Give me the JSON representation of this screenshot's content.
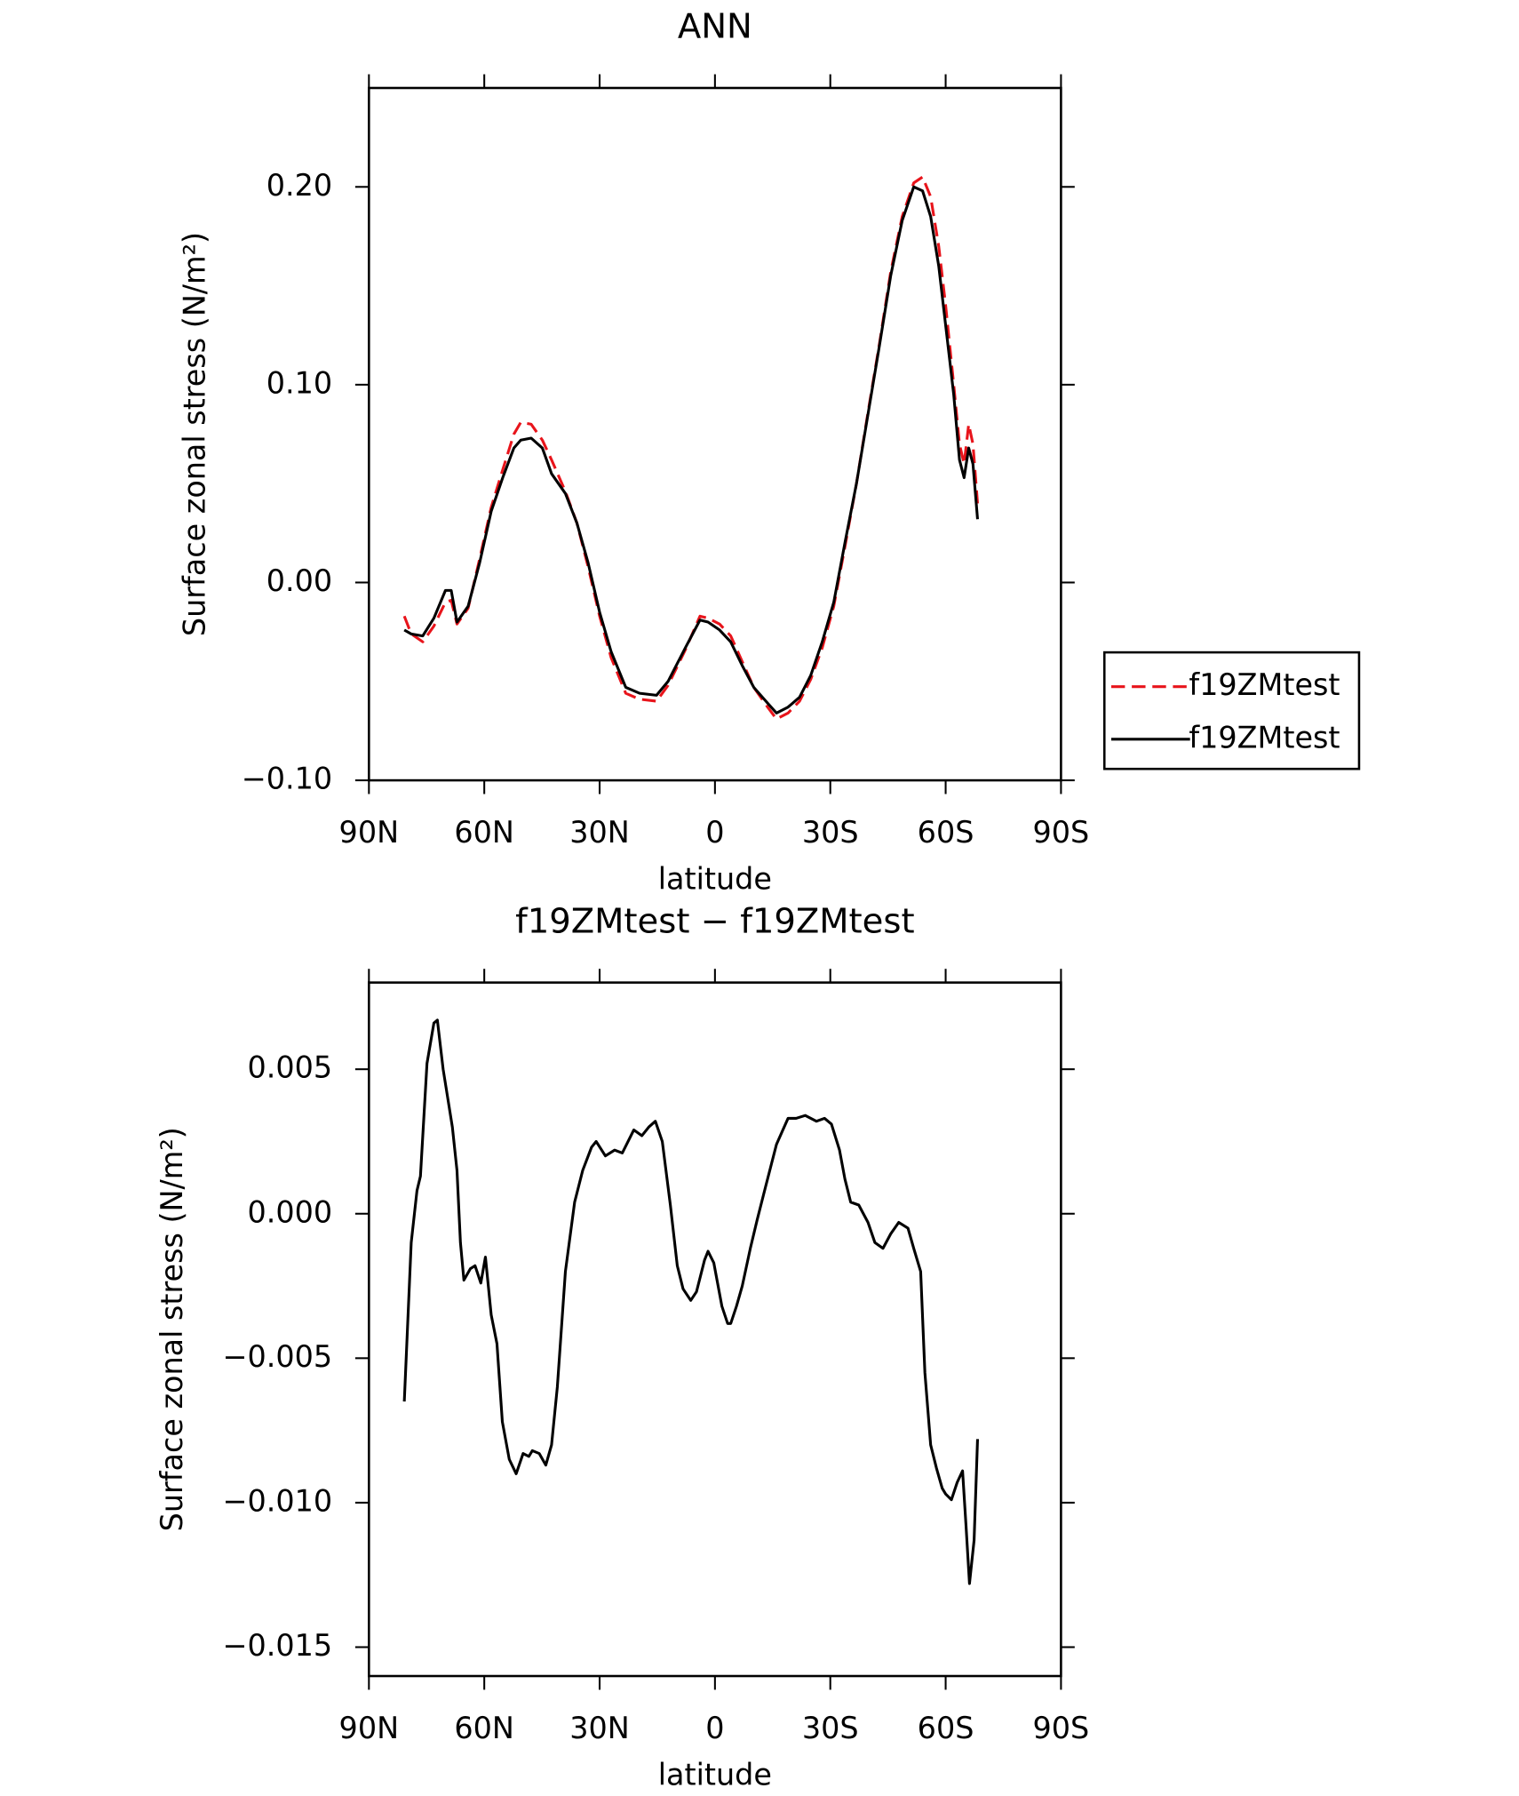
{
  "chart_data": [
    {
      "type": "line",
      "title": "ANN",
      "x_label": "latitude",
      "y_label": "Surface zonal stress (N/m²)",
      "xlim": [
        90,
        -90
      ],
      "xticks": [
        {
          "value": 90,
          "label": "90N"
        },
        {
          "value": 60,
          "label": "60N"
        },
        {
          "value": 30,
          "label": "30N"
        },
        0,
        {
          "value": -30,
          "label": "30S"
        },
        {
          "value": -60,
          "label": "60S"
        },
        {
          "value": -90,
          "label": "90S"
        }
      ],
      "ylim": [
        -0.1,
        0.25
      ],
      "yticks": [
        {
          "value": -0.1,
          "label": "−0.10"
        },
        {
          "value": 0,
          "label": "0.00"
        },
        {
          "value": 0.1,
          "label": "0.10"
        },
        {
          "value": 0.2,
          "label": "0.20"
        }
      ],
      "legend": "right",
      "x": [
        80.8,
        79.0,
        76.0,
        73.1,
        70.1,
        68.6,
        67.1,
        64.2,
        61.2,
        58.2,
        55.2,
        52.3,
        50.5,
        47.8,
        44.9,
        42.5,
        38.9,
        35.9,
        33.0,
        30.0,
        27.0,
        23.2,
        19.6,
        15.2,
        12.2,
        7.7,
        3.9,
        1.8,
        -1.2,
        -4.1,
        -7.1,
        -10.1,
        -13.7,
        -16.0,
        -19.0,
        -22.0,
        -24.9,
        -27.9,
        -30.9,
        -33.8,
        -36.8,
        -39.8,
        -42.8,
        -45.7,
        -48.7,
        -51.7,
        -54.0,
        -56.1,
        -58.2,
        -60.0,
        -62.1,
        -63.6,
        -64.8,
        -66.0,
        -67.1,
        -68.3
      ],
      "series": [
        {
          "name": "f19ZMtest",
          "color": "#e8141b",
          "linestyle": "dashed",
          "values": [
            -0.017,
            -0.026,
            -0.03,
            -0.022,
            -0.01,
            -0.009,
            -0.021,
            -0.013,
            0.012,
            0.038,
            0.057,
            0.075,
            0.081,
            0.08,
            0.072,
            0.062,
            0.046,
            0.03,
            0.008,
            -0.017,
            -0.038,
            -0.056,
            -0.059,
            -0.06,
            -0.052,
            -0.034,
            -0.017,
            -0.018,
            -0.021,
            -0.027,
            -0.04,
            -0.053,
            -0.063,
            -0.069,
            -0.066,
            -0.06,
            -0.049,
            -0.033,
            -0.012,
            0.018,
            0.05,
            0.086,
            0.121,
            0.157,
            0.185,
            0.202,
            0.205,
            0.195,
            0.17,
            0.14,
            0.1,
            0.07,
            0.06,
            0.08,
            0.07,
            0.04
          ]
        },
        {
          "name": "f19ZMtest",
          "color": "#000000",
          "linestyle": "solid",
          "values": [
            -0.024,
            -0.026,
            -0.027,
            -0.018,
            -0.004,
            -0.004,
            -0.02,
            -0.012,
            0.01,
            0.036,
            0.053,
            0.068,
            0.072,
            0.073,
            0.068,
            0.055,
            0.045,
            0.03,
            0.01,
            -0.015,
            -0.035,
            -0.053,
            -0.056,
            -0.057,
            -0.05,
            -0.033,
            -0.019,
            -0.02,
            -0.024,
            -0.03,
            -0.042,
            -0.053,
            -0.061,
            -0.066,
            -0.063,
            -0.058,
            -0.047,
            -0.03,
            -0.01,
            0.02,
            0.05,
            0.085,
            0.12,
            0.155,
            0.183,
            0.2,
            0.198,
            0.185,
            0.16,
            0.13,
            0.095,
            0.062,
            0.053,
            0.068,
            0.06,
            0.032
          ]
        }
      ]
    },
    {
      "type": "line",
      "title": "f19ZMtest − f19ZMtest",
      "x_label": "latitude",
      "y_label": "Surface zonal stress (N/m²)",
      "xlim": [
        90,
        -90
      ],
      "xticks": [
        {
          "value": 90,
          "label": "90N"
        },
        {
          "value": 60,
          "label": "60N"
        },
        {
          "value": 30,
          "label": "30N"
        },
        0,
        {
          "value": -30,
          "label": "30S"
        },
        {
          "value": -60,
          "label": "60S"
        },
        {
          "value": -90,
          "label": "90S"
        }
      ],
      "ylim": [
        -0.016,
        0.008
      ],
      "yticks": [
        {
          "value": -0.015,
          "label": "−0.015"
        },
        {
          "value": -0.01,
          "label": "−0.010"
        },
        {
          "value": -0.005,
          "label": "−0.005"
        },
        {
          "value": 0,
          "label": "0.000"
        },
        {
          "value": 0.005,
          "label": "0.005"
        }
      ],
      "x": [
        80.8,
        79.0,
        77.5,
        76.6,
        74.9,
        73.1,
        72.2,
        70.7,
        68.3,
        67.1,
        66.2,
        65.3,
        63.6,
        62.4,
        60.9,
        59.7,
        58.2,
        56.7,
        55.3,
        53.5,
        51.7,
        49.9,
        48.4,
        47.5,
        45.7,
        44.0,
        42.5,
        41.0,
        38.9,
        36.5,
        34.4,
        32.1,
        30.9,
        28.5,
        26.1,
        24.1,
        21.1,
        19.0,
        17.2,
        15.5,
        13.7,
        11.6,
        9.8,
        8.3,
        6.3,
        4.8,
        2.7,
        1.8,
        0.3,
        -1.8,
        -3.3,
        -4.1,
        -5.6,
        -7.1,
        -9.2,
        -11.0,
        -13.1,
        -16.0,
        -19.0,
        -21.1,
        -23.5,
        -26.4,
        -28.5,
        -30.3,
        -32.4,
        -33.8,
        -35.3,
        -37.4,
        -39.8,
        -41.6,
        -43.7,
        -45.7,
        -47.8,
        -50.2,
        -51.7,
        -53.5,
        -54.6,
        -56.1,
        -57.6,
        -59.1,
        -60.0,
        -61.5,
        -63.0,
        -64.4,
        -65.3,
        -66.2,
        -67.4,
        -68.3
      ],
      "color": "#000000",
      "values": [
        -0.0065,
        -0.001,
        0.0008,
        0.0013,
        0.0052,
        0.0066,
        0.0067,
        0.005,
        0.003,
        0.0015,
        -0.001,
        -0.0023,
        -0.0019,
        -0.0018,
        -0.0024,
        -0.0015,
        -0.0035,
        -0.0045,
        -0.0072,
        -0.0085,
        -0.009,
        -0.0083,
        -0.0084,
        -0.0082,
        -0.0083,
        -0.0087,
        -0.008,
        -0.006,
        -0.002,
        0.0004,
        0.0015,
        0.0023,
        0.0025,
        0.002,
        0.0022,
        0.0021,
        0.0029,
        0.0027,
        0.003,
        0.0032,
        0.0025,
        0.0003,
        -0.0018,
        -0.0026,
        -0.003,
        -0.0027,
        -0.0016,
        -0.0013,
        -0.0017,
        -0.0032,
        -0.0038,
        -0.0038,
        -0.0032,
        -0.0025,
        -0.0012,
        -0.0002,
        0.0009,
        0.0024,
        0.0033,
        0.0033,
        0.0034,
        0.0032,
        0.0033,
        0.0031,
        0.0022,
        0.0012,
        0.0004,
        0.0003,
        -0.0003,
        -0.001,
        -0.0012,
        -0.0007,
        -0.0003,
        -0.0005,
        -0.0012,
        -0.002,
        -0.0055,
        -0.008,
        -0.0088,
        -0.0095,
        -0.0097,
        -0.0099,
        -0.0093,
        -0.0089,
        -0.0108,
        -0.0128,
        -0.0113,
        -0.0078
      ]
    }
  ]
}
